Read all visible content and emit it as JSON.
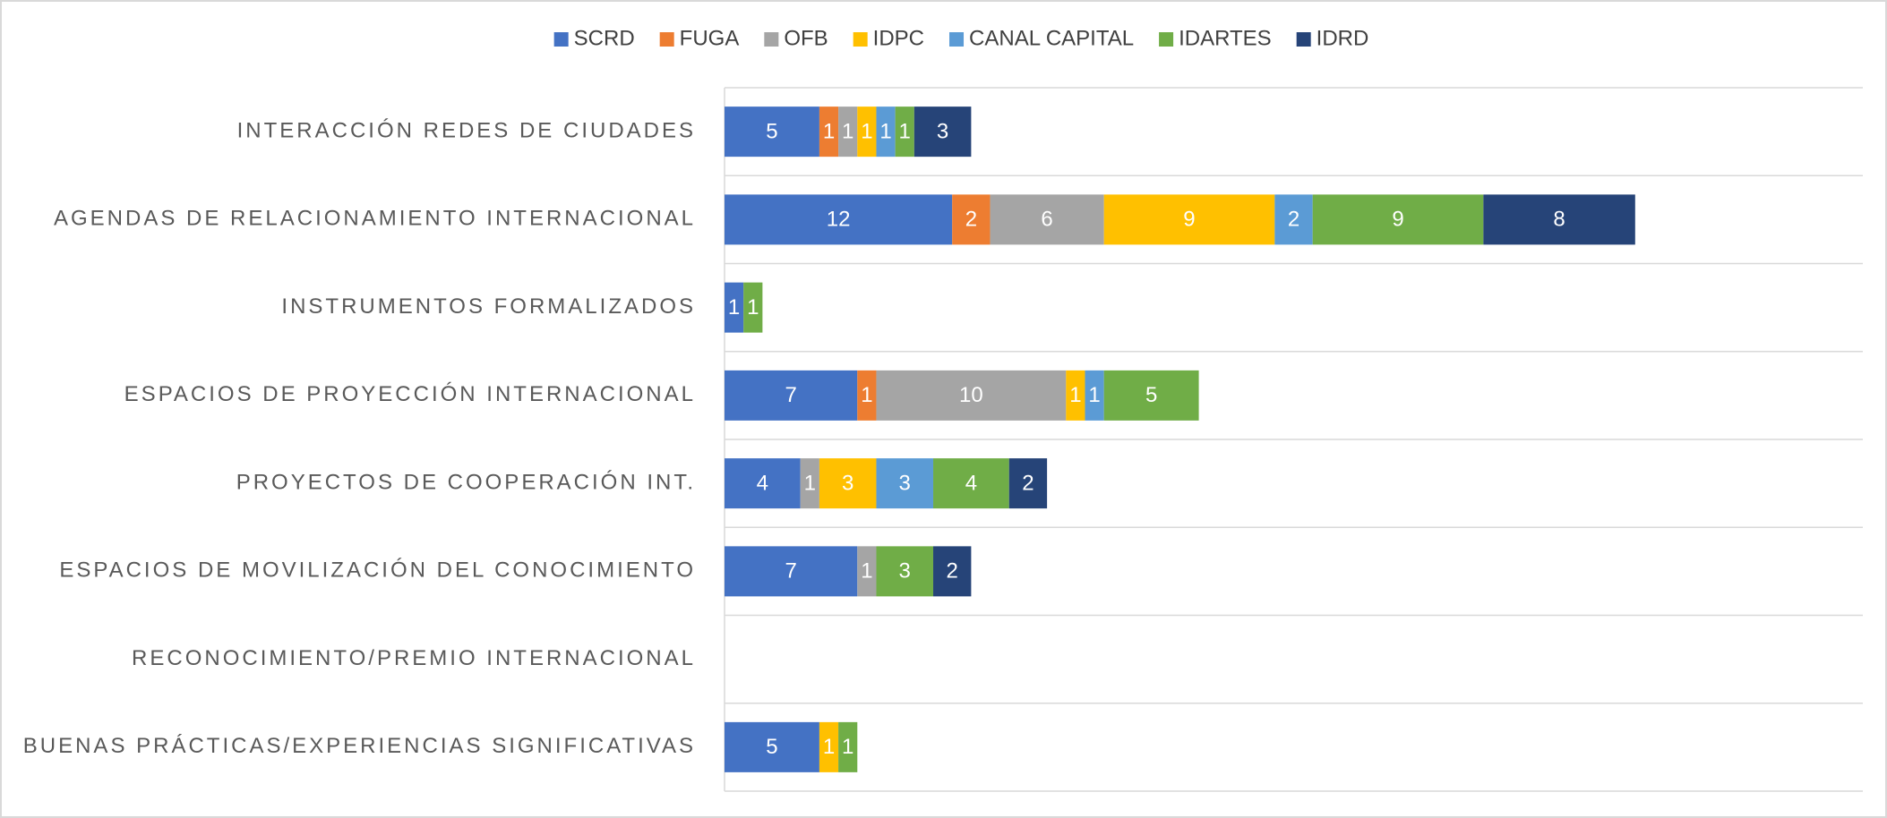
{
  "chart_data": {
    "type": "stacked-bar-horizontal",
    "categories": [
      "INTERACCIÓN REDES DE CIUDADES",
      "AGENDAS DE RELACIONAMIENTO INTERNACIONAL",
      "INSTRUMENTOS FORMALIZADOS",
      "ESPACIOS DE PROYECCIÓN INTERNACIONAL",
      "PROYECTOS DE COOPERACIÓN INT.",
      "ESPACIOS DE MOVILIZACIÓN DEL CONOCIMIENTO",
      "RECONOCIMIENTO/PREMIO INTERNACIONAL",
      "BUENAS PRÁCTICAS/EXPERIENCIAS SIGNIFICATIVAS"
    ],
    "series": [
      {
        "name": "SCRD",
        "color": "#4472c4",
        "values": [
          5,
          12,
          1,
          7,
          4,
          7,
          null,
          5
        ]
      },
      {
        "name": "FUGA",
        "color": "#ed7d31",
        "values": [
          1,
          2,
          null,
          1,
          null,
          null,
          null,
          null
        ]
      },
      {
        "name": "OFB",
        "color": "#a5a5a5",
        "values": [
          1,
          6,
          null,
          10,
          1,
          1,
          null,
          null
        ]
      },
      {
        "name": "IDPC",
        "color": "#ffc000",
        "values": [
          1,
          9,
          null,
          1,
          3,
          null,
          null,
          1
        ]
      },
      {
        "name": "CANAL CAPITAL",
        "color": "#5b9bd5",
        "values": [
          1,
          2,
          null,
          1,
          3,
          null,
          null,
          null
        ]
      },
      {
        "name": "IDARTES",
        "color": "#70ad47",
        "values": [
          1,
          9,
          1,
          5,
          4,
          3,
          null,
          1
        ]
      },
      {
        "name": "IDRD",
        "color": "#264478",
        "values": [
          3,
          8,
          null,
          null,
          2,
          2,
          null,
          null
        ]
      }
    ],
    "xlim": [
      0,
      60
    ],
    "legend": "top"
  }
}
